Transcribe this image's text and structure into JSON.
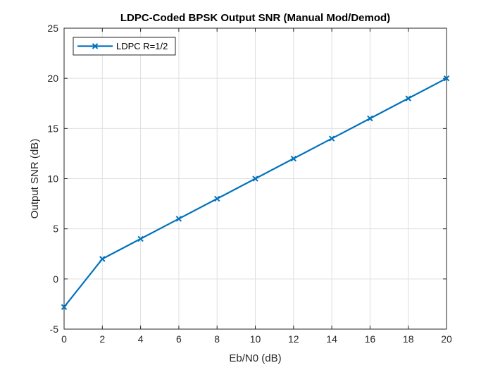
{
  "chart_data": {
    "type": "line",
    "title": "LDPC-Coded BPSK Output SNR (Manual Mod/Demod)",
    "xlabel": "Eb/N0 (dB)",
    "ylabel": "Output SNR (dB)",
    "xlim": [
      0,
      20
    ],
    "ylim": [
      -5,
      25
    ],
    "xticks": [
      0,
      2,
      4,
      6,
      8,
      10,
      12,
      14,
      16,
      18,
      20
    ],
    "yticks": [
      -5,
      0,
      5,
      10,
      15,
      20,
      25
    ],
    "grid": true,
    "legend_position": "top-left",
    "x": [
      0,
      2,
      4,
      6,
      8,
      10,
      12,
      14,
      16,
      18,
      20
    ],
    "series": [
      {
        "name": "LDPC R=1/2",
        "color": "#0072BD",
        "marker": "x",
        "values": [
          -2.8,
          2.0,
          4.0,
          6.0,
          8.0,
          10.0,
          12.0,
          14.0,
          16.0,
          18.0,
          20.0
        ]
      }
    ]
  }
}
